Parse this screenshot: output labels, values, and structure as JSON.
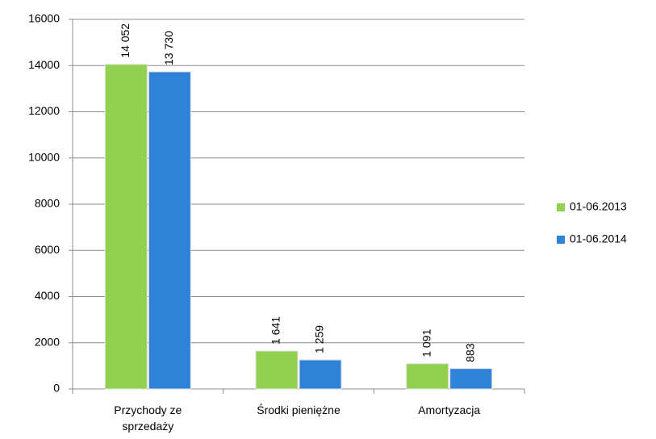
{
  "chart_data": {
    "type": "bar",
    "categories": [
      "Przychody ze sprzedaży",
      "Środki pieniężne",
      "Amortyzacja"
    ],
    "series": [
      {
        "name": "01-06.2013",
        "color": "#92d050",
        "values": [
          14052,
          1641,
          1091
        ],
        "value_labels": [
          "14 052",
          "1 641",
          "1 091"
        ]
      },
      {
        "name": "01-06.2014",
        "color": "#2e82d8",
        "values": [
          13730,
          1259,
          883
        ],
        "value_labels": [
          "13 730",
          "1 259",
          "883"
        ]
      }
    ],
    "ylim": [
      0,
      16000
    ],
    "yticks": [
      0,
      2000,
      4000,
      6000,
      8000,
      10000,
      12000,
      14000,
      16000
    ],
    "grid": true,
    "legend": "right"
  }
}
